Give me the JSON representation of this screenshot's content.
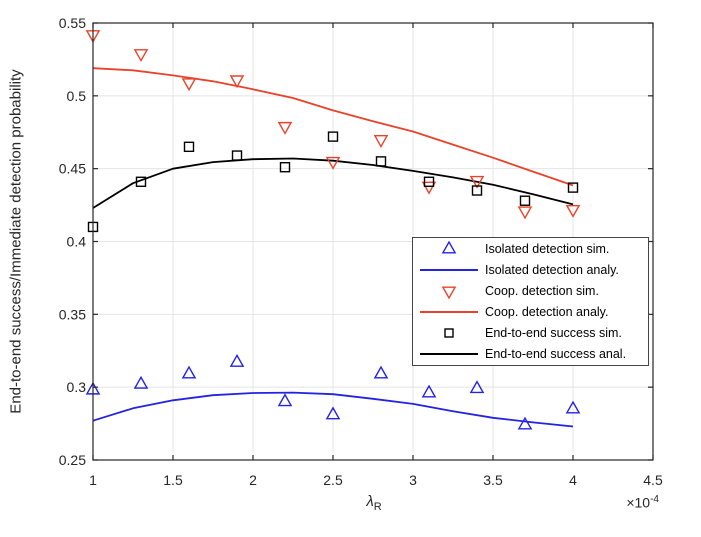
{
  "figure": {
    "ylabel": "End-to-end success/Immediate detection probability",
    "xlabel": {
      "symbol": "λ",
      "subscript": "R"
    },
    "offset_label": {
      "base": "×10",
      "exponent": "-4"
    }
  },
  "colors": {
    "blue": "#2323e0",
    "red": "#e8432a",
    "black": "#000000",
    "grid": "#e4e4e4",
    "axis": "#262626",
    "background": "#ffffff"
  },
  "axes": {
    "xlim": [
      1,
      4.5
    ],
    "ylim": [
      0.25,
      0.55
    ],
    "xticks": [
      1,
      1.5,
      2,
      2.5,
      3,
      3.5,
      4,
      4.5
    ],
    "yticks": [
      0.25,
      0.3,
      0.35,
      0.4,
      0.45,
      0.5,
      0.55
    ],
    "xtick_labels": [
      "1",
      "1.5",
      "2",
      "2.5",
      "3",
      "3.5",
      "4",
      "4.5"
    ],
    "ytick_labels": [
      "0.25",
      "0.3",
      "0.35",
      "0.4",
      "0.45",
      "0.5",
      "0.55"
    ]
  },
  "legend": {
    "entries": [
      {
        "label": "Isolated detection sim.",
        "swatch": "marker",
        "marker": "triangle-up",
        "color": "#2323e0"
      },
      {
        "label": "Isolated detection analy.",
        "swatch": "line",
        "marker": null,
        "color": "#2323e0"
      },
      {
        "label": "Coop. detection sim.",
        "swatch": "marker",
        "marker": "triangle-down",
        "color": "#e8432a"
      },
      {
        "label": "Coop. detection analy.",
        "swatch": "line",
        "marker": null,
        "color": "#e8432a"
      },
      {
        "label": "End-to-end success sim.",
        "swatch": "marker",
        "marker": "square",
        "color": "#000000"
      },
      {
        "label": "End-to-end success anal.",
        "swatch": "line",
        "marker": null,
        "color": "#000000"
      }
    ]
  },
  "chart_data": {
    "type": "scatter",
    "title": "",
    "xlabel": "λ_R (×10^-4)",
    "ylabel": "End-to-end success/Immediate detection probability",
    "xlim": [
      1,
      4.5
    ],
    "ylim": [
      0.25,
      0.55
    ],
    "grid": true,
    "legend_position": "middle-right",
    "x_scale_note": "x values are ×10^-4",
    "scatter_x": [
      1.0,
      1.3,
      1.6,
      1.9,
      2.2,
      2.5,
      2.8,
      3.1,
      3.4,
      3.7,
      4.0
    ],
    "line_x": [
      1.0,
      1.25,
      1.5,
      1.75,
      2.0,
      2.25,
      2.5,
      2.75,
      3.0,
      3.25,
      3.5,
      3.75,
      4.0
    ],
    "series": [
      {
        "name": "Isolated detection sim.",
        "kind": "scatter",
        "marker": "triangle-up",
        "color": "#2323e0",
        "y": [
          0.298,
          0.302,
          0.309,
          0.317,
          0.29,
          0.281,
          0.309,
          0.296,
          0.299,
          0.274,
          0.285
        ]
      },
      {
        "name": "Isolated detection analy.",
        "kind": "line",
        "color": "#2323e0",
        "y": [
          0.277,
          0.2855,
          0.291,
          0.2945,
          0.296,
          0.2963,
          0.2952,
          0.292,
          0.2885,
          0.2835,
          0.279,
          0.2758,
          0.273
        ]
      },
      {
        "name": "Coop. detection sim.",
        "kind": "scatter",
        "marker": "triangle-down",
        "color": "#e8432a",
        "y": [
          0.542,
          0.529,
          0.509,
          0.511,
          0.479,
          0.455,
          0.47,
          0.438,
          0.442,
          0.421,
          0.422
        ]
      },
      {
        "name": "Coop. detection analy.",
        "kind": "line",
        "color": "#e8432a",
        "y": [
          0.519,
          0.5175,
          0.514,
          0.51,
          0.5045,
          0.4985,
          0.49,
          0.4825,
          0.4755,
          0.4665,
          0.4575,
          0.448,
          0.4385
        ]
      },
      {
        "name": "End-to-end success sim.",
        "kind": "scatter",
        "marker": "square",
        "color": "#000000",
        "y": [
          0.41,
          0.441,
          0.465,
          0.459,
          0.451,
          0.472,
          0.455,
          0.441,
          0.435,
          0.428,
          0.437
        ]
      },
      {
        "name": "End-to-end success anal.",
        "kind": "line",
        "color": "#000000",
        "y": [
          0.423,
          0.44,
          0.45,
          0.4545,
          0.4565,
          0.457,
          0.4555,
          0.4525,
          0.4485,
          0.444,
          0.439,
          0.4325,
          0.4255
        ]
      }
    ]
  }
}
